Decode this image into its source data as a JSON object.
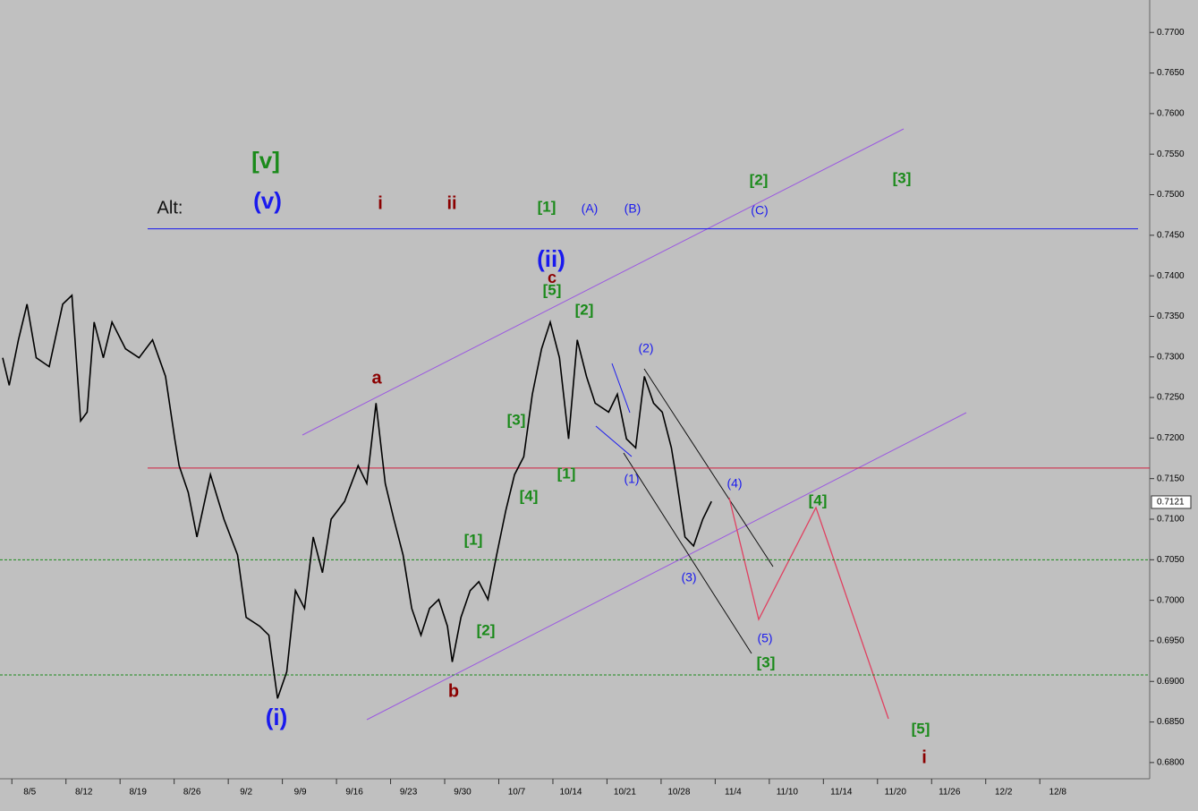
{
  "chart_data": {
    "type": "line",
    "color": "#000000",
    "x": [
      -0.5,
      -0.38,
      -0.21,
      -0.05,
      0.12,
      0.36,
      0.61,
      0.78,
      0.94,
      1.06,
      1.19,
      1.36,
      1.52,
      1.77,
      2.02,
      2.27,
      2.51,
      2.68,
      2.76,
      2.93,
      3.09,
      3.34,
      3.59,
      3.84,
      4.0,
      4.25,
      4.42,
      4.58,
      4.75,
      4.91,
      5.08,
      5.24,
      5.41,
      5.57,
      5.82,
      6.07,
      6.23,
      6.4,
      6.57,
      6.73,
      6.9,
      7.06,
      7.23,
      7.39,
      7.56,
      7.72,
      7.81,
      7.97,
      8.14,
      8.3,
      8.47,
      8.63,
      8.8,
      8.96,
      9.13,
      9.29,
      9.46,
      9.62,
      9.79,
      9.96,
      10.12,
      10.29,
      10.45,
      10.7,
      10.86,
      11.03,
      11.2,
      11.36,
      11.53,
      11.69,
      11.86,
      11.94,
      12.11,
      12.27,
      12.44,
      12.6
    ],
    "values": [
      0.7299,
      0.7265,
      0.7321,
      0.7365,
      0.7299,
      0.7288,
      0.7365,
      0.7376,
      0.7221,
      0.7232,
      0.7343,
      0.7299,
      0.7343,
      0.731,
      0.7299,
      0.7321,
      0.7276,
      0.7199,
      0.7166,
      0.7133,
      0.7078,
      0.7155,
      0.71,
      0.7056,
      0.6979,
      0.6968,
      0.6957,
      0.6879,
      0.6912,
      0.7012,
      0.699,
      0.7078,
      0.7034,
      0.71,
      0.7122,
      0.7166,
      0.7144,
      0.7243,
      0.7144,
      0.71,
      0.7056,
      0.699,
      0.6957,
      0.699,
      0.7001,
      0.6968,
      0.6924,
      0.6979,
      0.7012,
      0.7023,
      0.7001,
      0.7056,
      0.7111,
      0.7155,
      0.7177,
      0.7254,
      0.731,
      0.7343,
      0.7299,
      0.7199,
      0.7321,
      0.7276,
      0.7243,
      0.7232,
      0.7254,
      0.7199,
      0.7188,
      0.7276,
      0.7243,
      0.7232,
      0.7188,
      0.7155,
      0.7078,
      0.7067,
      0.71,
      0.7122
    ],
    "xlim": [
      -0.55,
      20.7
    ],
    "ylim": [
      0.678,
      0.774
    ],
    "xticks": [
      {
        "value": 0,
        "label": "8/5"
      },
      {
        "value": 1,
        "label": "8/12"
      },
      {
        "value": 2,
        "label": "8/19"
      },
      {
        "value": 3,
        "label": "8/26"
      },
      {
        "value": 4,
        "label": "9/2"
      },
      {
        "value": 5,
        "label": "9/9"
      },
      {
        "value": 6,
        "label": "9/16"
      },
      {
        "value": 7,
        "label": "9/23"
      },
      {
        "value": 8,
        "label": "9/30"
      },
      {
        "value": 9,
        "label": "10/7"
      },
      {
        "value": 10,
        "label": "10/14"
      },
      {
        "value": 11,
        "label": "10/21"
      },
      {
        "value": 12,
        "label": "10/28"
      },
      {
        "value": 13,
        "label": "11/4"
      },
      {
        "value": 14,
        "label": "11/10"
      },
      {
        "value": 15,
        "label": "11/14"
      },
      {
        "value": 16,
        "label": "11/20"
      },
      {
        "value": 17,
        "label": "11/26"
      },
      {
        "value": 18,
        "label": "12/2"
      },
      {
        "value": 19,
        "label": "12/8"
      }
    ],
    "yticks": [
      {
        "value": 0.68,
        "label": "0.6800"
      },
      {
        "value": 0.685,
        "label": "0.6850"
      },
      {
        "value": 0.69,
        "label": "0.6900"
      },
      {
        "value": 0.695,
        "label": "0.6950"
      },
      {
        "value": 0.7,
        "label": "0.7000"
      },
      {
        "value": 0.705,
        "label": "0.7050"
      },
      {
        "value": 0.71,
        "label": "0.7100"
      },
      {
        "value": 0.715,
        "label": "0.7150"
      },
      {
        "value": 0.72,
        "label": "0.7200"
      },
      {
        "value": 0.725,
        "label": "0.7250"
      },
      {
        "value": 0.73,
        "label": "0.7300"
      },
      {
        "value": 0.735,
        "label": "0.7350"
      },
      {
        "value": 0.74,
        "label": "0.7400"
      },
      {
        "value": 0.745,
        "label": "0.7450"
      },
      {
        "value": 0.75,
        "label": "0.7500"
      },
      {
        "value": 0.755,
        "label": "0.7550"
      },
      {
        "value": 0.76,
        "label": "0.7600"
      },
      {
        "value": 0.765,
        "label": "0.7650"
      },
      {
        "value": 0.77,
        "label": "0.7700"
      }
    ],
    "last_price": 0.7121,
    "hlines": [
      {
        "value": 0.7458,
        "color": "#1a1aee",
        "dashed": false
      },
      {
        "value": 0.7163,
        "color": "#d02040",
        "dashed": false
      },
      {
        "value": 0.705,
        "color": "#1a8a1a",
        "dashed": true
      },
      {
        "value": 0.6908,
        "color": "#1a8a1a",
        "dashed": true
      }
    ],
    "annotations": [
      {
        "text": "[v]",
        "color": "#1a8a1a"
      },
      {
        "text": "(v)",
        "color": "#1a1aee"
      },
      {
        "text": "Alt:",
        "color": "#111111"
      },
      {
        "text": "i",
        "color": "#8b0000"
      },
      {
        "text": "ii",
        "color": "#8b0000"
      },
      {
        "text": "[1]",
        "color": "#1a8a1a"
      },
      {
        "text": "(A)",
        "color": "#1a1aee"
      },
      {
        "text": "(B)",
        "color": "#1a1aee"
      },
      {
        "text": "[2]",
        "color": "#1a8a1a"
      },
      {
        "text": "(C)",
        "color": "#1a1aee"
      },
      {
        "text": "[3]",
        "color": "#1a8a1a"
      },
      {
        "text": "(ii)",
        "color": "#1a1aee"
      },
      {
        "text": "c",
        "color": "#8b0000"
      },
      {
        "text": "[5]",
        "color": "#1a8a1a"
      },
      {
        "text": "[2]",
        "color": "#1a8a1a"
      },
      {
        "text": "(2)",
        "color": "#1a1aee"
      },
      {
        "text": "a",
        "color": "#8b0000"
      },
      {
        "text": "[3]",
        "color": "#1a8a1a"
      },
      {
        "text": "[1]",
        "color": "#1a8a1a"
      },
      {
        "text": "(1)",
        "color": "#1a1aee"
      },
      {
        "text": "(4)",
        "color": "#1a1aee"
      },
      {
        "text": "[4]",
        "color": "#1a8a1a"
      },
      {
        "text": "[4]",
        "color": "#1a8a1a"
      },
      {
        "text": "[1]",
        "color": "#1a8a1a"
      },
      {
        "text": "(3)",
        "color": "#1a1aee"
      },
      {
        "text": "[2]",
        "color": "#1a8a1a"
      },
      {
        "text": "(5)",
        "color": "#1a1aee"
      },
      {
        "text": "[3]",
        "color": "#1a8a1a"
      },
      {
        "text": "b",
        "color": "#8b0000"
      },
      {
        "text": "(i)",
        "color": "#1a1aee"
      },
      {
        "text": "[5]",
        "color": "#1a8a1a"
      },
      {
        "text": "i",
        "color": "#8b0000"
      }
    ]
  }
}
